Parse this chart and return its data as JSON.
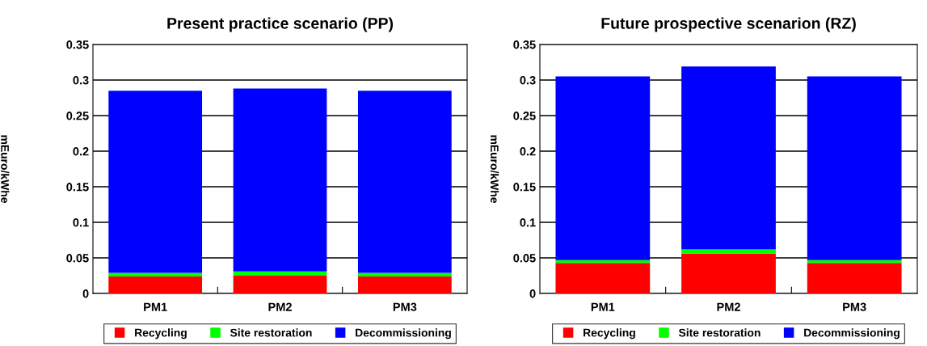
{
  "chart_data": [
    {
      "type": "bar",
      "title": "Present practice scenario (PP)",
      "ylabel": "mEuro/kWhe",
      "categories": [
        "PM1",
        "PM2",
        "PM3"
      ],
      "stacked": true,
      "ylim": [
        0,
        0.35
      ],
      "yticks": [
        0,
        0.05,
        0.1,
        0.15,
        0.2,
        0.25,
        0.3,
        0.35
      ],
      "grid": "y",
      "legend": "bottom",
      "series": [
        {
          "name": "Recycling",
          "color": "#ff0000",
          "values": [
            0.024,
            0.025,
            0.024
          ]
        },
        {
          "name": "Site restoration",
          "color": "#00ff00",
          "values": [
            0.005,
            0.006,
            0.005
          ]
        },
        {
          "name": "Decommissioning",
          "color": "#0000ff",
          "values": [
            0.256,
            0.257,
            0.256
          ]
        }
      ]
    },
    {
      "type": "bar",
      "title": "Future prospective scenarion (RZ)",
      "ylabel": "mEuro/kWhe",
      "categories": [
        "PM1",
        "PM2",
        "PM3"
      ],
      "stacked": true,
      "ylim": [
        0,
        0.35
      ],
      "yticks": [
        0,
        0.05,
        0.1,
        0.15,
        0.2,
        0.25,
        0.3,
        0.35
      ],
      "grid": "y",
      "legend": "bottom",
      "series": [
        {
          "name": "Recycling",
          "color": "#ff0000",
          "values": [
            0.043,
            0.056,
            0.043
          ]
        },
        {
          "name": "Site restoration",
          "color": "#00ff00",
          "values": [
            0.004,
            0.006,
            0.004
          ]
        },
        {
          "name": "Decommissioning",
          "color": "#0000ff",
          "values": [
            0.258,
            0.257,
            0.258
          ]
        }
      ]
    }
  ]
}
